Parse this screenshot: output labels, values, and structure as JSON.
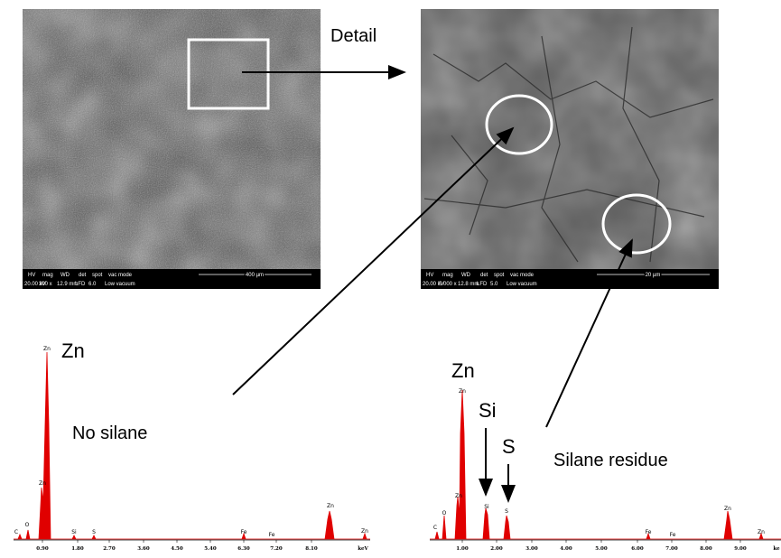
{
  "sem_images": [
    {
      "info_header": [
        "HV",
        "mag",
        "WD",
        "det",
        "spot",
        "vac mode"
      ],
      "info_values": [
        "20.00 kV",
        "300 x",
        "12.9 mm",
        "LFD",
        "6.0",
        "Low vacuum"
      ],
      "scale_bar": "400 µm"
    },
    {
      "info_header": [
        "HV",
        "mag",
        "WD",
        "det",
        "spot",
        "vac mode"
      ],
      "info_values": [
        "20.00 kV",
        "5 000 x",
        "12.8 mm",
        "LFD",
        "5.0",
        "Low vacuum"
      ],
      "scale_bar": "20 µm"
    }
  ],
  "annotations": {
    "detail": "Detail",
    "left_zn": "Zn",
    "no_silane": "No silane",
    "right_zn": "Zn",
    "si": "Si",
    "s": "S",
    "silane_residue": "Silane residue"
  },
  "spectra": [
    {
      "peak_labels": [
        "C",
        "O",
        "Zn",
        "Zn",
        "Si",
        "S",
        "Fe",
        "Fe",
        "Zn",
        "Zn"
      ],
      "axis_ticks": [
        "0.90",
        "1.80",
        "2.70",
        "3.60",
        "4.50",
        "5.40",
        "6.30",
        "7.20",
        "8.10"
      ],
      "axis_unit": "keV"
    },
    {
      "peak_labels": [
        "C",
        "O",
        "Zn",
        "Zn",
        "Si",
        "S",
        "Fe",
        "Fe",
        "Zn",
        "Zn"
      ],
      "axis_ticks": [
        "1.00",
        "2.00",
        "3.00",
        "4.00",
        "5.00",
        "6.00",
        "7.00",
        "8.00",
        "9.00"
      ],
      "axis_unit": "ke"
    }
  ]
}
